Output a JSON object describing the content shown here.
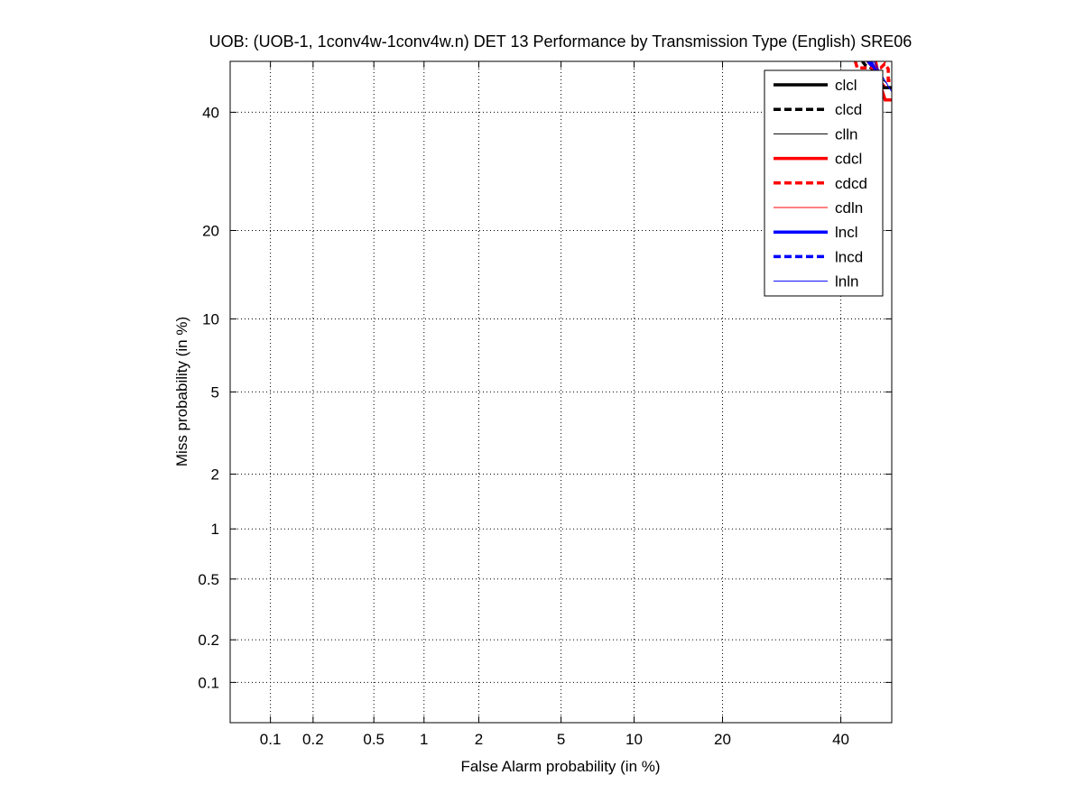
{
  "chart_data": {
    "type": "line",
    "title": "UOB: (UOB-1, 1conv4w-1conv4w.n) DET 13 Performance by Transmission Type (English) SRE06",
    "xlabel": "False Alarm probability (in %)",
    "ylabel": "Miss probability (in %)",
    "x_scale": "probit",
    "y_scale": "probit",
    "xlim": [
      0.05,
      50
    ],
    "ylim": [
      0.05,
      50
    ],
    "x_ticks": [
      0.1,
      0.2,
      0.5,
      1,
      2,
      5,
      10,
      20,
      40
    ],
    "x_tick_labels": [
      "0.1",
      "0.2",
      "0.5",
      "1",
      "2",
      "5",
      "10",
      "20",
      "40"
    ],
    "y_ticks": [
      0.1,
      0.2,
      0.5,
      1,
      2,
      5,
      10,
      20,
      40
    ],
    "y_tick_labels": [
      "0.1",
      "0.2",
      "0.5",
      "1",
      "2",
      "5",
      "10",
      "20",
      "40"
    ],
    "grid": true,
    "legend_position": "top-right",
    "series": [
      {
        "name": "clcl",
        "color": "#000000",
        "style": "solid",
        "width": "thick",
        "x": [
          45.8,
          46.3,
          47.0,
          47.8,
          48.5,
          50.0
        ],
        "y": [
          50.0,
          48.6,
          47.2,
          45.5,
          44.8,
          44.8
        ]
      },
      {
        "name": "clcd",
        "color": "#000000",
        "style": "dashed",
        "width": "thick",
        "x": [
          44.2,
          44.8,
          45.5,
          46.1,
          46.6,
          47.1
        ],
        "y": [
          50.0,
          49.2,
          49.0,
          48.5,
          47.6,
          46.8
        ]
      },
      {
        "name": "clln",
        "color": "#000000",
        "style": "solid",
        "width": "thin",
        "x": [
          45.2,
          46.0,
          46.8,
          47.6,
          48.4,
          49.1
        ],
        "y": [
          50.0,
          49.0,
          48.0,
          47.1,
          46.2,
          45.6
        ]
      },
      {
        "name": "cdcl",
        "color": "#ff0000",
        "style": "solid",
        "width": "thick",
        "x": [
          46.8,
          47.3,
          48.0,
          48.7,
          50.0
        ],
        "y": [
          50.0,
          47.5,
          44.5,
          42.4,
          42.4
        ]
      },
      {
        "name": "cdcd",
        "color": "#ff0000",
        "style": "dashed",
        "width": "thick",
        "x": [
          42.8,
          43.2,
          44.2,
          47.8,
          48.6,
          49.3,
          49.3,
          50.0
        ],
        "y": [
          50.0,
          48.7,
          48.7,
          48.7,
          49.5,
          48.5,
          46.2,
          46.2
        ]
      },
      {
        "name": "cdln",
        "color": "#ff0000",
        "style": "solid",
        "width": "thin",
        "x": [
          45.0,
          45.8,
          46.5,
          47.3,
          48.0,
          48.8
        ],
        "y": [
          50.0,
          49.0,
          48.0,
          47.0,
          46.0,
          45.0
        ]
      },
      {
        "name": "lncl",
        "color": "#0000ff",
        "style": "solid",
        "width": "thick",
        "x": [
          45.9,
          46.4,
          47.1,
          47.7
        ],
        "y": [
          50.0,
          48.9,
          47.9,
          47.1
        ]
      },
      {
        "name": "lncd",
        "color": "#0000ff",
        "style": "dashed",
        "width": "thick",
        "x": [
          45.3,
          45.9,
          46.5,
          47.1,
          47.8
        ],
        "y": [
          50.0,
          49.3,
          48.6,
          47.8,
          47.0
        ]
      },
      {
        "name": "lnln",
        "color": "#0000ff",
        "style": "solid",
        "width": "thin",
        "x": [
          46.5,
          47.4,
          48.4,
          49.3,
          50.0
        ],
        "y": [
          50.0,
          48.3,
          46.6,
          45.1,
          44.0
        ]
      }
    ]
  }
}
